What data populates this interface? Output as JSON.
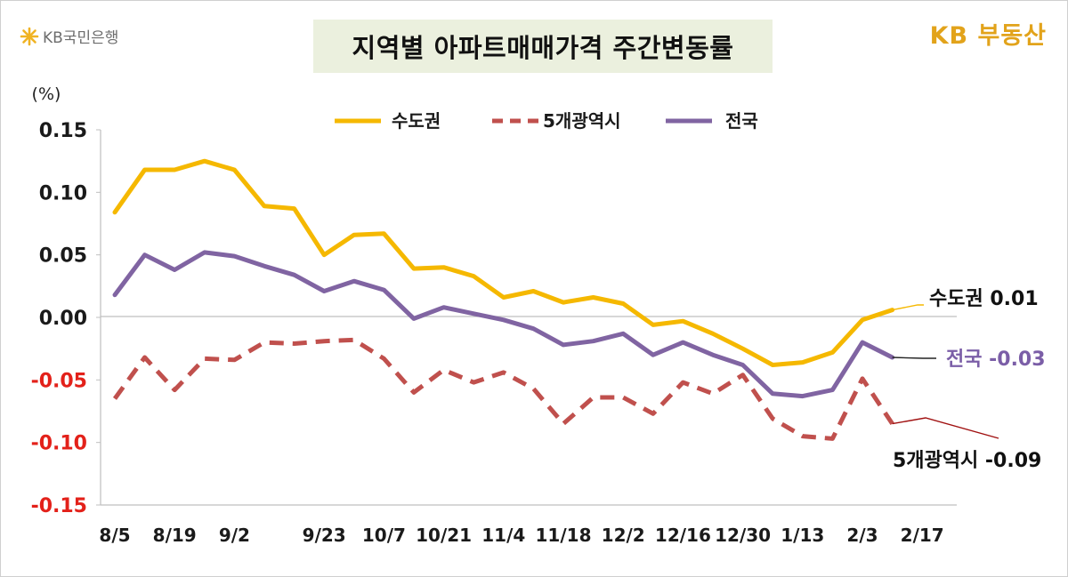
{
  "header": {
    "brand_left": "KB국민은행",
    "brand_right": "KB 부동산",
    "title": "지역별 아파트매매가격 주간변동률"
  },
  "chart_data": {
    "type": "line",
    "title": "지역별 아파트매매가격 주간변동률",
    "ylabel": "(%)",
    "ylim": [
      -0.15,
      0.15
    ],
    "yticks": [
      {
        "value": 0.15,
        "label": "0.15"
      },
      {
        "value": 0.1,
        "label": "0.10"
      },
      {
        "value": 0.05,
        "label": "0.05"
      },
      {
        "value": 0.0,
        "label": "0.00"
      },
      {
        "value": -0.05,
        "label": "-0.05"
      },
      {
        "value": -0.1,
        "label": "-0.10"
      },
      {
        "value": -0.15,
        "label": "-0.15"
      }
    ],
    "negative_tick_color": "#e3211a",
    "x_tick_labels": [
      {
        "index": 0,
        "label": "8/5"
      },
      {
        "index": 2,
        "label": "8/19"
      },
      {
        "index": 4,
        "label": "9/2"
      },
      {
        "index": 7,
        "label": "9/23"
      },
      {
        "index": 9,
        "label": "10/7"
      },
      {
        "index": 11,
        "label": "10/21"
      },
      {
        "index": 13,
        "label": "11/4"
      },
      {
        "index": 15,
        "label": "11/18"
      },
      {
        "index": 17,
        "label": "12/2"
      },
      {
        "index": 19,
        "label": "12/16"
      },
      {
        "index": 21,
        "label": "12/30"
      },
      {
        "index": 23,
        "label": "1/13"
      },
      {
        "index": 25,
        "label": "2/3"
      },
      {
        "index": 27,
        "label": "2/17"
      }
    ],
    "grid": false,
    "legend_position": "top",
    "series": [
      {
        "name": "수도권",
        "color": "#f5b800",
        "dash": "solid",
        "values": [
          0.084,
          0.118,
          0.118,
          0.125,
          0.118,
          0.089,
          0.087,
          0.05,
          0.066,
          0.067,
          0.039,
          0.04,
          0.033,
          0.016,
          0.021,
          0.012,
          0.016,
          0.011,
          -0.006,
          -0.003,
          -0.013,
          -0.025,
          -0.038,
          -0.036,
          -0.028,
          -0.002,
          0.006
        ],
        "end_label": "수도권 0.01",
        "end_label_color": "#111111"
      },
      {
        "name": "5개광역시",
        "color": "#c0504d",
        "dash": "dashed",
        "values": [
          -0.065,
          -0.032,
          -0.058,
          -0.033,
          -0.034,
          -0.02,
          -0.021,
          -0.019,
          -0.018,
          -0.033,
          -0.06,
          -0.042,
          -0.052,
          -0.044,
          -0.057,
          -0.085,
          -0.064,
          -0.064,
          -0.077,
          -0.052,
          -0.061,
          -0.046,
          -0.081,
          -0.095,
          -0.097,
          -0.049,
          -0.085
        ],
        "end_label": "5개광역시 -0.09",
        "end_label_color": "#111111"
      },
      {
        "name": "전국",
        "color": "#8064a2",
        "dash": "solid",
        "values": [
          0.018,
          0.05,
          0.038,
          0.052,
          0.049,
          0.041,
          0.034,
          0.021,
          0.029,
          0.022,
          -0.001,
          0.008,
          0.003,
          -0.002,
          -0.009,
          -0.022,
          -0.019,
          -0.013,
          -0.03,
          -0.02,
          -0.03,
          -0.038,
          -0.061,
          -0.063,
          -0.058,
          -0.02,
          -0.032
        ],
        "end_label": "전국 -0.03",
        "end_label_color": "#7b5ea7"
      }
    ]
  }
}
